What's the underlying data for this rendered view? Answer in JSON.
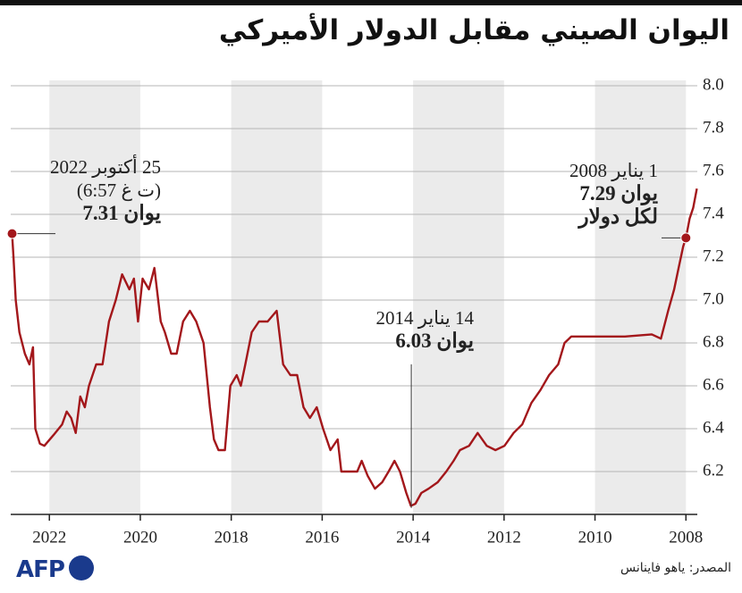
{
  "chart_data": {
    "type": "line",
    "title": "اليوان الصيني مقابل الدولار الأميركي",
    "source": "المصدر: ياهو فاينانس",
    "logo": "AFP",
    "color": "#a3171b",
    "x": [
      2022.82,
      2022.79,
      2022.74,
      2022.66,
      2022.54,
      2022.44,
      2022.36,
      2022.31,
      2022.21,
      2022.11,
      2021.91,
      2021.72,
      2021.62,
      2021.52,
      2021.42,
      2021.32,
      2021.22,
      2021.13,
      2020.97,
      2020.83,
      2020.69,
      2020.54,
      2020.4,
      2020.24,
      2020.14,
      2020.05,
      2019.95,
      2019.81,
      2019.69,
      2019.55,
      2019.46,
      2019.32,
      2019.2,
      2019.06,
      2018.91,
      2018.77,
      2018.61,
      2018.47,
      2018.38,
      2018.28,
      2018.14,
      2018.02,
      2017.88,
      2017.79,
      2017.69,
      2017.55,
      2017.39,
      2017.2,
      2017.0,
      2016.86,
      2016.7,
      2016.55,
      2016.41,
      2016.27,
      2016.12,
      2015.98,
      2015.82,
      2015.66,
      2015.58,
      2015.39,
      2015.23,
      2015.13,
      2015.0,
      2014.84,
      2014.68,
      2014.54,
      2014.41,
      2014.29,
      2014.15,
      2014.05,
      2013.95,
      2013.82,
      2013.66,
      2013.46,
      2013.27,
      2013.11,
      2012.97,
      2012.77,
      2012.58,
      2012.38,
      2012.19,
      2011.99,
      2011.79,
      2011.6,
      2011.4,
      2011.2,
      2011.01,
      2010.81,
      2010.67,
      2010.52,
      2010.12,
      2009.34,
      2008.75,
      2008.55,
      2008.39,
      2008.26,
      2008.16,
      2008.06,
      2008.0,
      2007.92,
      2007.84,
      2007.76
    ],
    "values": [
      7.31,
      7.2,
      7.0,
      6.85,
      6.75,
      6.7,
      6.78,
      6.4,
      6.33,
      6.32,
      6.37,
      6.42,
      6.48,
      6.45,
      6.38,
      6.55,
      6.5,
      6.6,
      6.7,
      6.7,
      6.9,
      7.0,
      7.12,
      7.05,
      7.1,
      6.9,
      7.1,
      7.05,
      7.15,
      6.9,
      6.85,
      6.75,
      6.75,
      6.9,
      6.95,
      6.9,
      6.8,
      6.5,
      6.35,
      6.3,
      6.3,
      6.6,
      6.65,
      6.6,
      6.7,
      6.85,
      6.9,
      6.9,
      6.95,
      6.7,
      6.65,
      6.65,
      6.5,
      6.45,
      6.5,
      6.4,
      6.3,
      6.35,
      6.2,
      6.2,
      6.2,
      6.25,
      6.18,
      6.12,
      6.15,
      6.2,
      6.25,
      6.2,
      6.1,
      6.04,
      6.05,
      6.1,
      6.12,
      6.15,
      6.2,
      6.25,
      6.3,
      6.32,
      6.38,
      6.32,
      6.3,
      6.32,
      6.38,
      6.42,
      6.52,
      6.58,
      6.65,
      6.7,
      6.8,
      6.83,
      6.83,
      6.83,
      6.84,
      6.82,
      6.95,
      7.05,
      7.15,
      7.25,
      7.29,
      7.38,
      7.43,
      7.52
    ],
    "xlim": [
      2022.85,
      2007.75
    ],
    "xticks": [
      2022,
      2020,
      2018,
      2016,
      2014,
      2012,
      2010,
      2008
    ],
    "ylim": [
      6.0,
      8.0
    ],
    "yticks": [
      6.2,
      6.4,
      6.6,
      6.8,
      {
        "value": 7.0,
        "label": "7.0"
      },
      7.2,
      7.4,
      7.6,
      7.8,
      {
        "value": 8.0,
        "label": "8.0"
      }
    ],
    "grid": true,
    "annotations": [
      {
        "date": "25 أكتوبر 2022",
        "note": "(6:57 ت غ)",
        "label": "7.31 يوان",
        "x": 2022.82,
        "value": 7.31
      },
      {
        "date": "1 يناير 2008",
        "label": "7.29 يوان",
        "sublabel": "لكل دولار",
        "x": 2008.0,
        "value": 7.29
      },
      {
        "date": "14 يناير 2014",
        "label": "6.03 يوان",
        "x": 2014.04,
        "value": 6.03
      }
    ]
  }
}
